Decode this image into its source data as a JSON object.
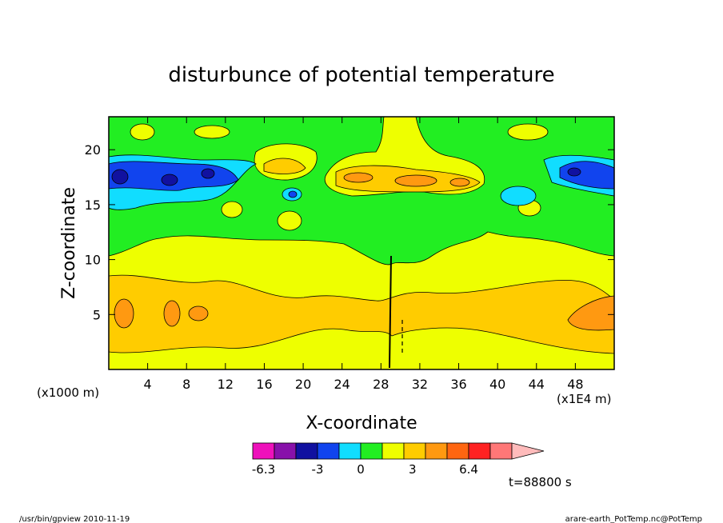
{
  "chart_data": {
    "type": "heatmap",
    "title": "disturbunce of potential temperature",
    "xlabel": "X-coordinate",
    "ylabel": "Z-coordinate",
    "x_units": "(x1000 m)",
    "y_units": "(x1E4 m)",
    "xlim": [
      0,
      52
    ],
    "ylim": [
      0,
      23
    ],
    "x_ticks": [
      4,
      8,
      12,
      16,
      20,
      24,
      28,
      32,
      36,
      40,
      44,
      48
    ],
    "y_ticks": [
      5,
      10,
      15,
      20
    ],
    "colorbar": {
      "labels": [
        "-6.3",
        "-3",
        "0",
        "3",
        "6.4"
      ],
      "colors": [
        "#ee11bb",
        "#8811aa",
        "#1111a0",
        "#1144ee",
        "#11ddff",
        "#22ee22",
        "#eeff00",
        "#ffcc00",
        "#ff9911",
        "#ff6611",
        "#ff2222",
        "#ff7777",
        "#ffbbbb"
      ]
    },
    "time_label": "t=88800 s",
    "bands": [
      {
        "z": [
          0,
          1.5
        ],
        "color": "#eeff00"
      },
      {
        "z": [
          1.5,
          8
        ],
        "color": "#ffcc00"
      },
      {
        "z": [
          8,
          10.5
        ],
        "color": "#eeff00"
      },
      {
        "z": [
          10.5,
          15.5
        ],
        "color": "#22ee22"
      },
      {
        "z": [
          15.5,
          19.5
        ],
        "color": "#22ee22"
      },
      {
        "z": [
          19.5,
          23
        ],
        "color": "#22ee22"
      }
    ]
  },
  "footer": {
    "left": "/usr/bin/gpview   2010-11-19",
    "right": "arare-earth_PotTemp.nc@PotTemp"
  }
}
